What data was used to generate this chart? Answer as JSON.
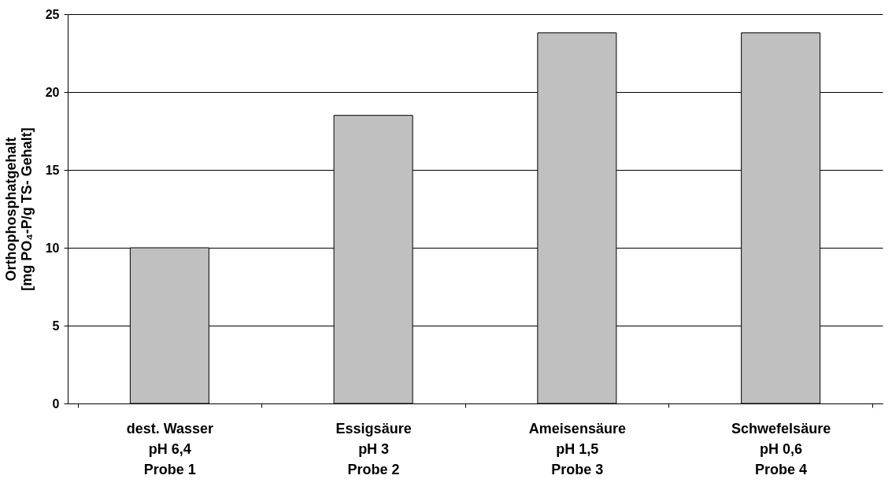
{
  "chart_data": {
    "type": "bar",
    "ylabel": "Orthophosphatgehalt\n[mg PO₄-P/g TS- Gehalt]",
    "categories": [
      "dest. Wasser\npH 6,4\n\nProbe 1",
      "Essigsäure\npH 3\n\nProbe 2",
      "Ameisensäure\npH 1,5\n\nProbe 3",
      "Schwefelsäure\npH 0,6\n\nProbe 4"
    ],
    "values": [
      10.0,
      18.5,
      23.8,
      23.8
    ],
    "color": "#c0c0c0",
    "ylim": [
      0,
      25
    ],
    "yticks": [
      0,
      5,
      10,
      15,
      20,
      25
    ],
    "grid": "y"
  }
}
